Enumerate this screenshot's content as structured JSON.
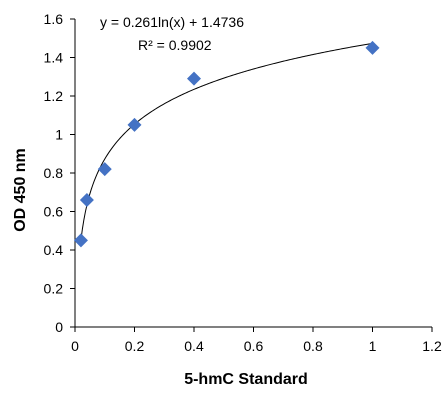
{
  "chart_data": {
    "type": "scatter",
    "x": [
      0.02,
      0.04,
      0.1,
      0.2,
      0.4,
      1.0
    ],
    "y": [
      0.45,
      0.66,
      0.82,
      1.05,
      1.29,
      1.45
    ],
    "xlabel": "5-hmC Standard",
    "ylabel": "OD 450 nm",
    "xlim": [
      0,
      1.2
    ],
    "ylim": [
      0,
      1.6
    ],
    "xticks": [
      0,
      0.2,
      0.4,
      0.6,
      0.8,
      1,
      1.2
    ],
    "yticks": [
      0,
      0.2,
      0.4,
      0.6,
      0.8,
      1,
      1.2,
      1.4,
      1.6
    ],
    "xtick_labels": [
      "0",
      "0.2",
      "0.4",
      "0.6",
      "0.8",
      "1",
      "1.2"
    ],
    "ytick_labels": [
      "0",
      "0.2",
      "0.4",
      "0.6",
      "0.8",
      "1",
      "1.2",
      "1.4",
      "1.6"
    ],
    "grid": false,
    "marker_shape": "diamond",
    "marker_color": "#4472c4",
    "trendline": {
      "type": "logarithmic",
      "a": 0.261,
      "b": 1.4736,
      "x_range": [
        0.02,
        1.0
      ],
      "color": "#000000",
      "equation": "y = 0.261ln(x) + 1.4736",
      "r_squared": "R² = 0.9902"
    }
  }
}
